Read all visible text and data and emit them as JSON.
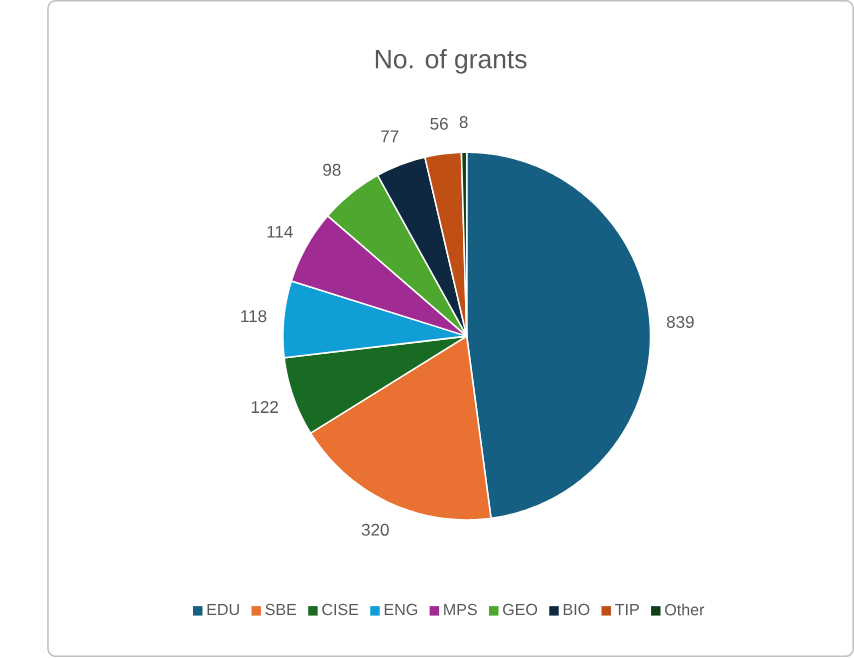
{
  "chart_data": {
    "type": "pie",
    "title": "No. of grants",
    "categories": [
      "EDU",
      "SBE",
      "CISE",
      "ENG",
      "MPS",
      "GEO",
      "BIO",
      "TIP",
      "Other"
    ],
    "values": [
      839,
      320,
      122,
      118,
      114,
      98,
      77,
      56,
      8
    ],
    "colors": [
      "#156082",
      "#e97132",
      "#196b24",
      "#0f9ed5",
      "#a02b93",
      "#4ea72e",
      "#0e2841",
      "#c04f15",
      "#10411a"
    ],
    "data_labels": true,
    "legend": "bottom"
  }
}
